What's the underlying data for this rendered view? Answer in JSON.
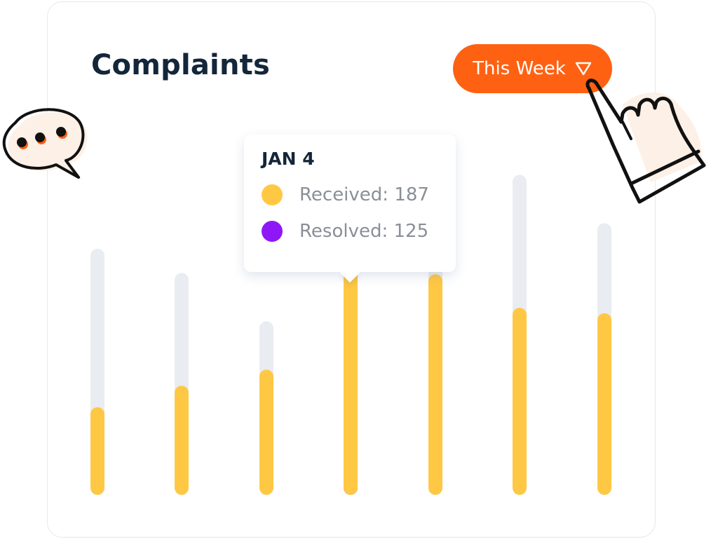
{
  "title": "Complaints",
  "period_button": {
    "label": "This Week",
    "icon": "caret-down-icon"
  },
  "tooltip": {
    "date": "JAN 4",
    "rows": [
      {
        "label": "Received: 187",
        "color": "#ffc844"
      },
      {
        "label": "Resolved: 125",
        "color": "#8f17f7"
      }
    ]
  },
  "colors": {
    "accent": "#ff6112",
    "track": "#e9ecf1",
    "received": "#ffc844",
    "resolved": "#8f17f7"
  },
  "chart_data": {
    "type": "bar",
    "categories": [
      "",
      "",
      "",
      "JAN 4",
      "",
      "",
      ""
    ],
    "series": [
      {
        "name": "Received",
        "values": [
          60,
          76,
          88,
          187,
          159,
          134,
          130
        ]
      },
      {
        "name": "Resolved",
        "values": [
          null,
          null,
          null,
          125,
          null,
          null,
          null
        ]
      }
    ],
    "track_values": [
      178,
      160,
      124,
      null,
      190,
      233,
      197
    ],
    "highlight_index": 3,
    "ylim": [
      0,
      240
    ],
    "grid": false,
    "legend": "none"
  }
}
